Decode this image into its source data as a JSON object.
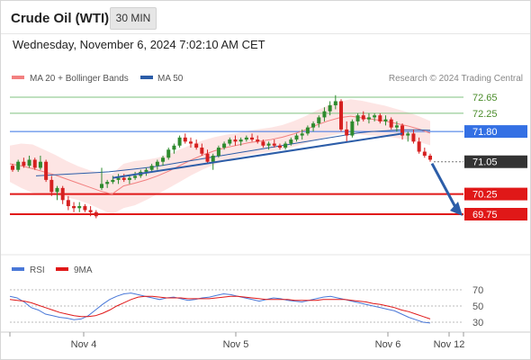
{
  "header": {
    "title": "Crude Oil (WTI)",
    "timeframe": "30 MIN"
  },
  "timestamp": "Wednesday, November 6, 2024 7:02:10 AM CET",
  "legend": {
    "ma20": "MA 20 + Bollinger Bands",
    "ma50": "MA 50",
    "credit": "Research © 2024 Trading Central",
    "rsi": "RSI",
    "rsi_ma": "9MA"
  },
  "colors": {
    "up": "#2e8b2e",
    "down": "#d62020",
    "ma20": "#f28080",
    "ma50": "#2c5da8",
    "band": "#fde1df",
    "trend": "#2c5da8",
    "resistance": "#7fc07f",
    "pivot": "#3470e4",
    "support": "#e01818",
    "current": "#333333",
    "rsi": "#4a78d8",
    "rsi_ma": "#e01818"
  },
  "chart_data": {
    "type": "candlestick",
    "x_ticks": [
      "Nov 4",
      "Nov 5",
      "Nov 6",
      "Nov 12"
    ],
    "levels": [
      {
        "label": "72.65",
        "value": 72.65,
        "kind": "resistance"
      },
      {
        "label": "72.25",
        "value": 72.25,
        "kind": "resistance"
      },
      {
        "label": "71.80",
        "value": 71.8,
        "kind": "pivot"
      },
      {
        "label": "71.05",
        "value": 71.05,
        "kind": "current"
      },
      {
        "label": "70.25",
        "value": 70.25,
        "kind": "support"
      },
      {
        "label": "69.75",
        "value": 69.75,
        "kind": "support"
      }
    ],
    "candles": [
      [
        70.95,
        71.0,
        70.8,
        70.85
      ],
      [
        70.85,
        71.1,
        70.8,
        71.05
      ],
      [
        71.05,
        71.15,
        70.9,
        70.95
      ],
      [
        70.95,
        71.2,
        70.9,
        71.1
      ],
      [
        71.1,
        71.15,
        70.85,
        70.9
      ],
      [
        70.9,
        71.2,
        70.85,
        71.05
      ],
      [
        71.05,
        71.1,
        70.55,
        70.6
      ],
      [
        70.6,
        70.7,
        70.2,
        70.3
      ],
      [
        70.3,
        70.45,
        70.1,
        70.4
      ],
      [
        70.4,
        70.45,
        70.0,
        70.1
      ],
      [
        70.1,
        70.2,
        69.85,
        69.95
      ],
      [
        69.95,
        70.05,
        69.8,
        69.9
      ],
      [
        69.9,
        70.05,
        69.8,
        69.95
      ],
      [
        69.95,
        70.0,
        69.8,
        69.85
      ],
      [
        69.85,
        69.95,
        69.7,
        69.8
      ],
      [
        69.8,
        69.85,
        69.65,
        69.7
      ],
      [
        70.4,
        70.9,
        70.35,
        70.5
      ],
      [
        70.5,
        70.6,
        70.4,
        70.55
      ],
      [
        70.55,
        70.7,
        70.5,
        70.6
      ],
      [
        70.6,
        70.75,
        70.5,
        70.65
      ],
      [
        70.65,
        70.75,
        70.55,
        70.6
      ],
      [
        70.6,
        70.7,
        70.5,
        70.65
      ],
      [
        70.65,
        70.8,
        70.6,
        70.7
      ],
      [
        70.7,
        70.85,
        70.65,
        70.8
      ],
      [
        70.8,
        70.9,
        70.7,
        70.85
      ],
      [
        70.85,
        71.0,
        70.8,
        70.95
      ],
      [
        70.95,
        71.1,
        70.85,
        71.05
      ],
      [
        71.05,
        71.2,
        70.95,
        71.15
      ],
      [
        71.15,
        71.4,
        71.1,
        71.35
      ],
      [
        71.35,
        71.5,
        71.25,
        71.45
      ],
      [
        71.45,
        71.7,
        71.4,
        71.65
      ],
      [
        71.65,
        71.75,
        71.5,
        71.55
      ],
      [
        71.55,
        71.65,
        71.4,
        71.5
      ],
      [
        71.5,
        71.6,
        71.35,
        71.4
      ],
      [
        71.4,
        71.5,
        71.2,
        71.25
      ],
      [
        71.25,
        71.35,
        71.0,
        71.05
      ],
      [
        71.05,
        71.25,
        70.85,
        71.2
      ],
      [
        71.2,
        71.45,
        71.15,
        71.4
      ],
      [
        71.4,
        71.55,
        71.35,
        71.5
      ],
      [
        71.5,
        71.65,
        71.45,
        71.6
      ],
      [
        71.6,
        71.7,
        71.45,
        71.55
      ],
      [
        71.55,
        71.65,
        71.45,
        71.6
      ],
      [
        71.6,
        71.7,
        71.55,
        71.65
      ],
      [
        71.65,
        71.75,
        71.55,
        71.6
      ],
      [
        71.6,
        71.7,
        71.5,
        71.55
      ],
      [
        71.55,
        71.6,
        71.4,
        71.45
      ],
      [
        71.45,
        71.55,
        71.35,
        71.5
      ],
      [
        71.5,
        71.6,
        71.4,
        71.45
      ],
      [
        71.45,
        71.5,
        71.35,
        71.4
      ],
      [
        71.4,
        71.55,
        71.35,
        71.5
      ],
      [
        71.5,
        71.65,
        71.45,
        71.6
      ],
      [
        71.6,
        71.75,
        71.55,
        71.7
      ],
      [
        71.7,
        71.85,
        71.6,
        71.75
      ],
      [
        71.75,
        71.95,
        71.7,
        71.9
      ],
      [
        71.9,
        72.05,
        71.8,
        72.0
      ],
      [
        72.0,
        72.2,
        71.9,
        72.15
      ],
      [
        72.15,
        72.4,
        72.05,
        72.3
      ],
      [
        72.3,
        72.55,
        72.2,
        72.45
      ],
      [
        72.45,
        72.7,
        72.35,
        72.55
      ],
      [
        72.55,
        72.6,
        71.8,
        71.85
      ],
      [
        71.85,
        72.05,
        71.55,
        71.7
      ],
      [
        71.7,
        72.1,
        71.65,
        72.05
      ],
      [
        72.05,
        72.25,
        71.95,
        72.2
      ],
      [
        72.2,
        72.3,
        72.05,
        72.1
      ],
      [
        72.1,
        72.25,
        72.0,
        72.15
      ],
      [
        72.15,
        72.25,
        72.05,
        72.2
      ],
      [
        72.2,
        72.25,
        72.0,
        72.05
      ],
      [
        72.05,
        72.2,
        71.95,
        72.1
      ],
      [
        72.1,
        72.15,
        71.85,
        71.9
      ],
      [
        71.9,
        72.05,
        71.8,
        71.95
      ],
      [
        71.95,
        72.0,
        71.6,
        71.7
      ],
      [
        71.7,
        71.8,
        71.55,
        71.75
      ],
      [
        71.75,
        71.85,
        71.5,
        71.55
      ],
      [
        71.55,
        71.65,
        71.25,
        71.3
      ],
      [
        71.3,
        71.4,
        71.15,
        71.2
      ],
      [
        71.2,
        71.25,
        71.05,
        71.1
      ]
    ],
    "ma20": [
      71.0,
      70.95,
      70.88,
      70.8,
      70.72,
      70.62,
      70.52,
      70.42,
      70.32,
      70.25,
      70.45,
      70.52,
      70.6,
      70.7,
      70.82,
      70.96,
      71.1,
      71.22,
      71.32,
      71.4,
      71.46,
      71.52,
      71.56,
      71.6,
      71.66,
      71.74,
      71.84,
      71.96,
      72.06,
      72.14,
      72.18,
      72.14,
      72.1,
      72.06,
      72.0,
      71.94,
      71.86,
      71.76
    ],
    "ma50": [
      70.7,
      70.72,
      70.74,
      70.76,
      70.78,
      70.8,
      70.84,
      70.88,
      70.92,
      70.98,
      71.04,
      71.1,
      71.16,
      71.22,
      71.28,
      71.34,
      71.4,
      71.46,
      71.52,
      71.58,
      71.64,
      71.7,
      71.76,
      71.8,
      71.82,
      71.84,
      71.84,
      71.83
    ],
    "trendline": [
      [
        70.65,
        18
      ],
      [
        71.75,
        70
      ]
    ],
    "forecast": {
      "from": 71.05,
      "to": 69.75
    },
    "rsi": {
      "ticks": [
        70,
        50,
        30
      ],
      "values": [
        62,
        60,
        55,
        48,
        45,
        40,
        38,
        36,
        35,
        33,
        34,
        38,
        45,
        52,
        58,
        62,
        65,
        66,
        64,
        62,
        60,
        58,
        60,
        61,
        59,
        57,
        58,
        60,
        61,
        63,
        65,
        64,
        62,
        60,
        58,
        56,
        58,
        60,
        59,
        57,
        56,
        55,
        57,
        59,
        61,
        62,
        60,
        58,
        56,
        54,
        52,
        50,
        48,
        46,
        44,
        40,
        36,
        33,
        30,
        29
      ],
      "ma9": [
        58,
        57,
        56,
        54,
        51,
        48,
        45,
        42,
        40,
        38,
        37,
        37,
        38,
        41,
        45,
        50,
        54,
        58,
        61,
        62,
        62,
        61,
        60,
        60,
        60,
        59,
        59,
        59,
        59,
        60,
        61,
        62,
        62,
        61,
        60,
        59,
        58,
        58,
        58,
        58,
        57,
        57,
        57,
        57,
        58,
        58,
        58,
        58,
        57,
        56,
        55,
        53,
        52,
        50,
        48,
        45,
        43,
        40,
        37,
        34
      ]
    }
  }
}
